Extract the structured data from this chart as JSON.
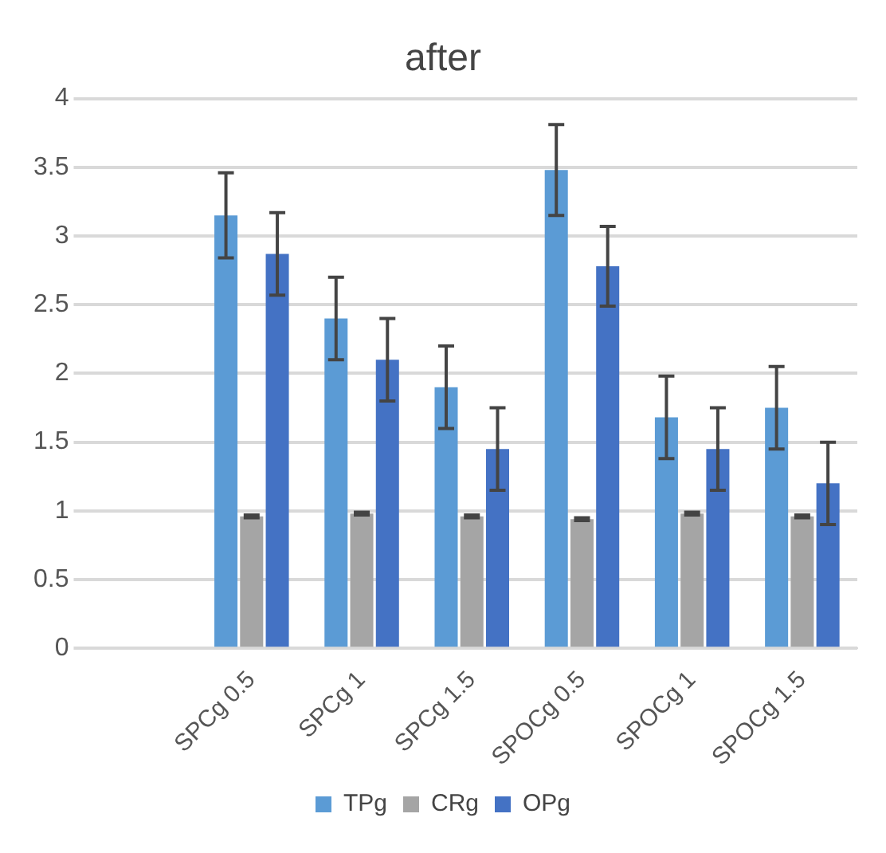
{
  "chart_data": {
    "type": "bar",
    "title": "after",
    "categories": [
      null,
      "SPCg 0.5",
      "SPCg 1",
      "SPCg 1.5",
      "SPOCg 0.5",
      "SPOCg 1",
      "SPOCg 1.5"
    ],
    "series": [
      {
        "name": "TPg",
        "color": "#5b9bd5",
        "values": [
          null,
          3.15,
          2.4,
          1.9,
          3.48,
          1.68,
          1.75
        ],
        "errors": [
          null,
          0.31,
          0.3,
          0.3,
          0.33,
          0.3,
          0.3
        ]
      },
      {
        "name": "CRg",
        "color": "#a5a5a5",
        "values": [
          null,
          0.96,
          0.98,
          0.96,
          0.94,
          0.98,
          0.96
        ],
        "errors": [
          null,
          0.01,
          0.01,
          0.01,
          0.01,
          0.01,
          0.01
        ]
      },
      {
        "name": "OPg",
        "color": "#4472c4",
        "values": [
          null,
          2.87,
          2.1,
          1.45,
          2.78,
          1.45,
          1.2
        ],
        "errors": [
          null,
          0.3,
          0.3,
          0.3,
          0.29,
          0.3,
          0.3
        ]
      }
    ],
    "ylim": [
      0,
      4
    ],
    "yticks": [
      0,
      0.5,
      1,
      1.5,
      2,
      2.5,
      3,
      3.5,
      4
    ],
    "grid": "y",
    "legend": "bottom"
  }
}
